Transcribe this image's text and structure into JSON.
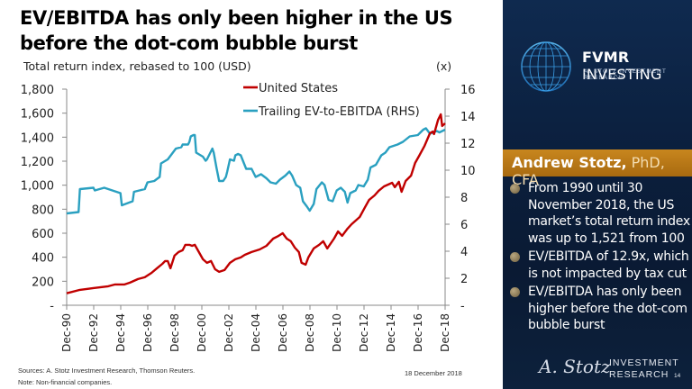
{
  "slide": {
    "title": "EV/EBITDA has only been higher in the US before the dot-com bubble burst",
    "subtitle": "Total return index, rebased to 100 (USD)",
    "rhs_unit": "(x)",
    "sources": "Sources: A. Stotz Investment Research, Thomson Reuters.",
    "note": "Note:  Non-financial companies.",
    "date": "18 December  2018",
    "page_number": "14"
  },
  "panel": {
    "brand_bold": "FVMR",
    "brand_rest": " INVESTING",
    "brand_sub": "A. STOTZ INVESTMENT RESEARCH",
    "author_name": "Andrew Stotz,",
    "author_creds": " PhD, CFA",
    "bullets": [
      "From 1990 until 30 November 2018, the US market’s total return index was up to 1,521 from 100",
      "EV/EBITDA of 12.9x, which is not impacted by tax cut",
      "EV/EBITDA has only been higher before the dot-com bubble burst"
    ],
    "signature": "A. Stotz",
    "footer_line1": "INVESTMENT",
    "footer_line2": "RESEARCH"
  },
  "colors": {
    "us": "#c00000",
    "ev": "#2aa0c0",
    "panel": "#0b1f3d",
    "author_bar": "#b87818"
  },
  "chart_data": {
    "type": "line",
    "title": "EV/EBITDA has only been higher in the US before the dot-com bubble burst",
    "ylabel": "Total return index, rebased to 100 (USD)",
    "y2label": "(x)",
    "xlim": [
      1990.92,
      2018.92
    ],
    "ylim": [
      0,
      1800
    ],
    "y2lim": [
      0,
      16
    ],
    "x_ticks": [
      "Dec-90",
      "Dec-92",
      "Dec-94",
      "Dec-96",
      "Dec-98",
      "Dec-00",
      "Dec-02",
      "Dec-04",
      "Dec-06",
      "Dec-08",
      "Dec-10",
      "Dec-12",
      "Dec-14",
      "Dec-16",
      "Dec-18"
    ],
    "y_ticks": [
      "-",
      "200",
      "400",
      "600",
      "800",
      "1,000",
      "1,200",
      "1,400",
      "1,600",
      "1,800"
    ],
    "y2_ticks": [
      "-",
      "2",
      "4",
      "6",
      "8",
      "10",
      "12",
      "14",
      "16"
    ],
    "legend": {
      "position": "top-center",
      "entries": [
        "United States",
        "Trailing EV-to-EBITDA (RHS)"
      ]
    },
    "series": [
      {
        "name": "United States",
        "axis": "left",
        "points": [
          [
            1990.92,
            100
          ],
          [
            1991.9,
            128
          ],
          [
            1992.9,
            143
          ],
          [
            1994.0,
            158
          ],
          [
            1994.5,
            173
          ],
          [
            1995.2,
            173
          ],
          [
            1995.6,
            188
          ],
          [
            1996.2,
            218
          ],
          [
            1996.7,
            233
          ],
          [
            1997.2,
            270
          ],
          [
            1997.6,
            308
          ],
          [
            1998.0,
            345
          ],
          [
            1998.2,
            368
          ],
          [
            1998.4,
            368
          ],
          [
            1998.6,
            308
          ],
          [
            1998.9,
            413
          ],
          [
            1999.2,
            443
          ],
          [
            1999.5,
            458
          ],
          [
            1999.7,
            503
          ],
          [
            2000.0,
            503
          ],
          [
            2000.2,
            495
          ],
          [
            2000.4,
            503
          ],
          [
            2000.7,
            443
          ],
          [
            2001.0,
            383
          ],
          [
            2001.3,
            353
          ],
          [
            2001.6,
            368
          ],
          [
            2001.9,
            300
          ],
          [
            2002.2,
            278
          ],
          [
            2002.6,
            293
          ],
          [
            2003.0,
            353
          ],
          [
            2003.4,
            383
          ],
          [
            2003.8,
            398
          ],
          [
            2004.1,
            420
          ],
          [
            2004.6,
            443
          ],
          [
            2005.2,
            465
          ],
          [
            2005.7,
            495
          ],
          [
            2006.2,
            555
          ],
          [
            2006.6,
            578
          ],
          [
            2006.9,
            600
          ],
          [
            2007.2,
            555
          ],
          [
            2007.5,
            533
          ],
          [
            2007.8,
            480
          ],
          [
            2008.1,
            443
          ],
          [
            2008.3,
            353
          ],
          [
            2008.6,
            338
          ],
          [
            2008.8,
            398
          ],
          [
            2009.2,
            473
          ],
          [
            2009.6,
            503
          ],
          [
            2009.9,
            533
          ],
          [
            2010.2,
            473
          ],
          [
            2010.7,
            555
          ],
          [
            2011.0,
            615
          ],
          [
            2011.3,
            578
          ],
          [
            2011.7,
            638
          ],
          [
            2012.0,
            675
          ],
          [
            2012.3,
            705
          ],
          [
            2012.6,
            735
          ],
          [
            2013.0,
            818
          ],
          [
            2013.3,
            878
          ],
          [
            2013.7,
            915
          ],
          [
            2014.0,
            953
          ],
          [
            2014.4,
            990
          ],
          [
            2014.7,
            1005
          ],
          [
            2015.0,
            1020
          ],
          [
            2015.2,
            983
          ],
          [
            2015.5,
            1028
          ],
          [
            2015.7,
            945
          ],
          [
            2016.0,
            1035
          ],
          [
            2016.4,
            1080
          ],
          [
            2016.7,
            1185
          ],
          [
            2017.0,
            1245
          ],
          [
            2017.4,
            1328
          ],
          [
            2017.8,
            1433
          ],
          [
            2018.0,
            1447
          ],
          [
            2018.1,
            1426
          ],
          [
            2018.4,
            1545
          ],
          [
            2018.6,
            1590
          ],
          [
            2018.7,
            1493
          ],
          [
            2018.92,
            1515
          ]
        ]
      },
      {
        "name": "Trailing EV-to-EBITDA (RHS)",
        "axis": "right",
        "points": [
          [
            1990.92,
            6.8
          ],
          [
            1991.8,
            6.9
          ],
          [
            1991.9,
            8.6
          ],
          [
            1992.9,
            8.7
          ],
          [
            1993.0,
            8.5
          ],
          [
            1993.7,
            8.7
          ],
          [
            1994.3,
            8.5
          ],
          [
            1994.9,
            8.3
          ],
          [
            1995.0,
            7.4
          ],
          [
            1995.8,
            7.7
          ],
          [
            1995.9,
            8.4
          ],
          [
            1996.7,
            8.6
          ],
          [
            1996.9,
            9.1
          ],
          [
            1997.4,
            9.2
          ],
          [
            1997.8,
            9.5
          ],
          [
            1997.9,
            10.5
          ],
          [
            1998.4,
            10.8
          ],
          [
            1998.7,
            11.2
          ],
          [
            1999.0,
            11.6
          ],
          [
            1999.4,
            11.7
          ],
          [
            1999.5,
            11.9
          ],
          [
            1999.9,
            11.9
          ],
          [
            2000.0,
            12.1
          ],
          [
            2000.1,
            12.5
          ],
          [
            2000.3,
            12.6
          ],
          [
            2000.4,
            12.6
          ],
          [
            2000.5,
            11.3
          ],
          [
            2001.0,
            11.0
          ],
          [
            2001.2,
            10.7
          ],
          [
            2001.3,
            10.8
          ],
          [
            2001.5,
            11.2
          ],
          [
            2001.7,
            11.6
          ],
          [
            2001.8,
            11.3
          ],
          [
            2002.0,
            10.2
          ],
          [
            2002.2,
            9.2
          ],
          [
            2002.5,
            9.2
          ],
          [
            2002.7,
            9.5
          ],
          [
            2002.8,
            9.9
          ],
          [
            2003.0,
            10.8
          ],
          [
            2003.3,
            10.7
          ],
          [
            2003.4,
            11.1
          ],
          [
            2003.6,
            11.2
          ],
          [
            2003.8,
            11.1
          ],
          [
            2004.0,
            10.6
          ],
          [
            2004.2,
            10.1
          ],
          [
            2004.6,
            10.1
          ],
          [
            2004.9,
            9.5
          ],
          [
            2005.3,
            9.7
          ],
          [
            2005.7,
            9.4
          ],
          [
            2006.0,
            9.1
          ],
          [
            2006.4,
            9.0
          ],
          [
            2006.7,
            9.3
          ],
          [
            2007.1,
            9.6
          ],
          [
            2007.4,
            9.9
          ],
          [
            2007.6,
            9.6
          ],
          [
            2007.9,
            8.9
          ],
          [
            2008.2,
            8.7
          ],
          [
            2008.4,
            7.7
          ],
          [
            2008.7,
            7.3
          ],
          [
            2008.9,
            7.0
          ],
          [
            2009.2,
            7.5
          ],
          [
            2009.4,
            8.6
          ],
          [
            2009.8,
            9.1
          ],
          [
            2010.0,
            8.9
          ],
          [
            2010.3,
            7.8
          ],
          [
            2010.6,
            7.7
          ],
          [
            2010.9,
            8.5
          ],
          [
            2011.2,
            8.7
          ],
          [
            2011.5,
            8.4
          ],
          [
            2011.7,
            7.6
          ],
          [
            2011.9,
            8.3
          ],
          [
            2012.3,
            8.5
          ],
          [
            2012.5,
            8.9
          ],
          [
            2012.9,
            8.8
          ],
          [
            2013.2,
            9.3
          ],
          [
            2013.4,
            10.2
          ],
          [
            2013.8,
            10.4
          ],
          [
            2014.2,
            11.1
          ],
          [
            2014.5,
            11.3
          ],
          [
            2014.8,
            11.7
          ],
          [
            2015.4,
            11.9
          ],
          [
            2015.8,
            12.1
          ],
          [
            2016.3,
            12.5
          ],
          [
            2016.9,
            12.6
          ],
          [
            2017.3,
            13.0
          ],
          [
            2017.5,
            13.1
          ],
          [
            2017.8,
            12.7
          ],
          [
            2018.3,
            12.9
          ],
          [
            2018.5,
            12.8
          ],
          [
            2018.92,
            13.0
          ]
        ]
      }
    ]
  }
}
